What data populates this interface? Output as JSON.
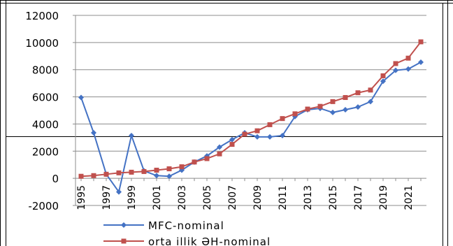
{
  "chart_data": {
    "type": "line",
    "title": "",
    "xlabel": "",
    "ylabel": "",
    "ylim": [
      -2000,
      12000
    ],
    "yticks": [
      -2000,
      0,
      2000,
      4000,
      6000,
      8000,
      10000,
      12000
    ],
    "x": [
      1995,
      1996,
      1997,
      1998,
      1999,
      2000,
      2001,
      2002,
      2003,
      2004,
      2005,
      2006,
      2007,
      2008,
      2009,
      2010,
      2011,
      2012,
      2013,
      2014,
      2015,
      2016,
      2017,
      2018,
      2019,
      2020,
      2021,
      2022
    ],
    "xtick_labels": [
      "1995",
      "1997",
      "1999",
      "2001",
      "2003",
      "2005",
      "2007",
      "2009",
      "2011",
      "2013",
      "2015",
      "2017",
      "2019",
      "2021"
    ],
    "grid": true,
    "legend_position": "bottom",
    "series": [
      {
        "name": "MFC-nominal",
        "color": "#4472c4",
        "marker": "diamond",
        "values": [
          5950,
          3350,
          300,
          -1000,
          3150,
          550,
          200,
          150,
          600,
          1200,
          1650,
          2300,
          2850,
          3350,
          3050,
          3050,
          3150,
          4550,
          5050,
          5150,
          4850,
          5050,
          5250,
          5650,
          7150,
          7950,
          8050,
          8550
        ]
      },
      {
        "name": "orta illik ƏH-nominal",
        "color": "#c0504d",
        "marker": "square",
        "values": [
          150,
          200,
          300,
          400,
          450,
          500,
          600,
          700,
          850,
          1200,
          1450,
          1800,
          2500,
          3250,
          3500,
          3950,
          4400,
          4750,
          5100,
          5300,
          5650,
          5950,
          6300,
          6500,
          7550,
          8450,
          8850,
          10050
        ]
      }
    ]
  }
}
